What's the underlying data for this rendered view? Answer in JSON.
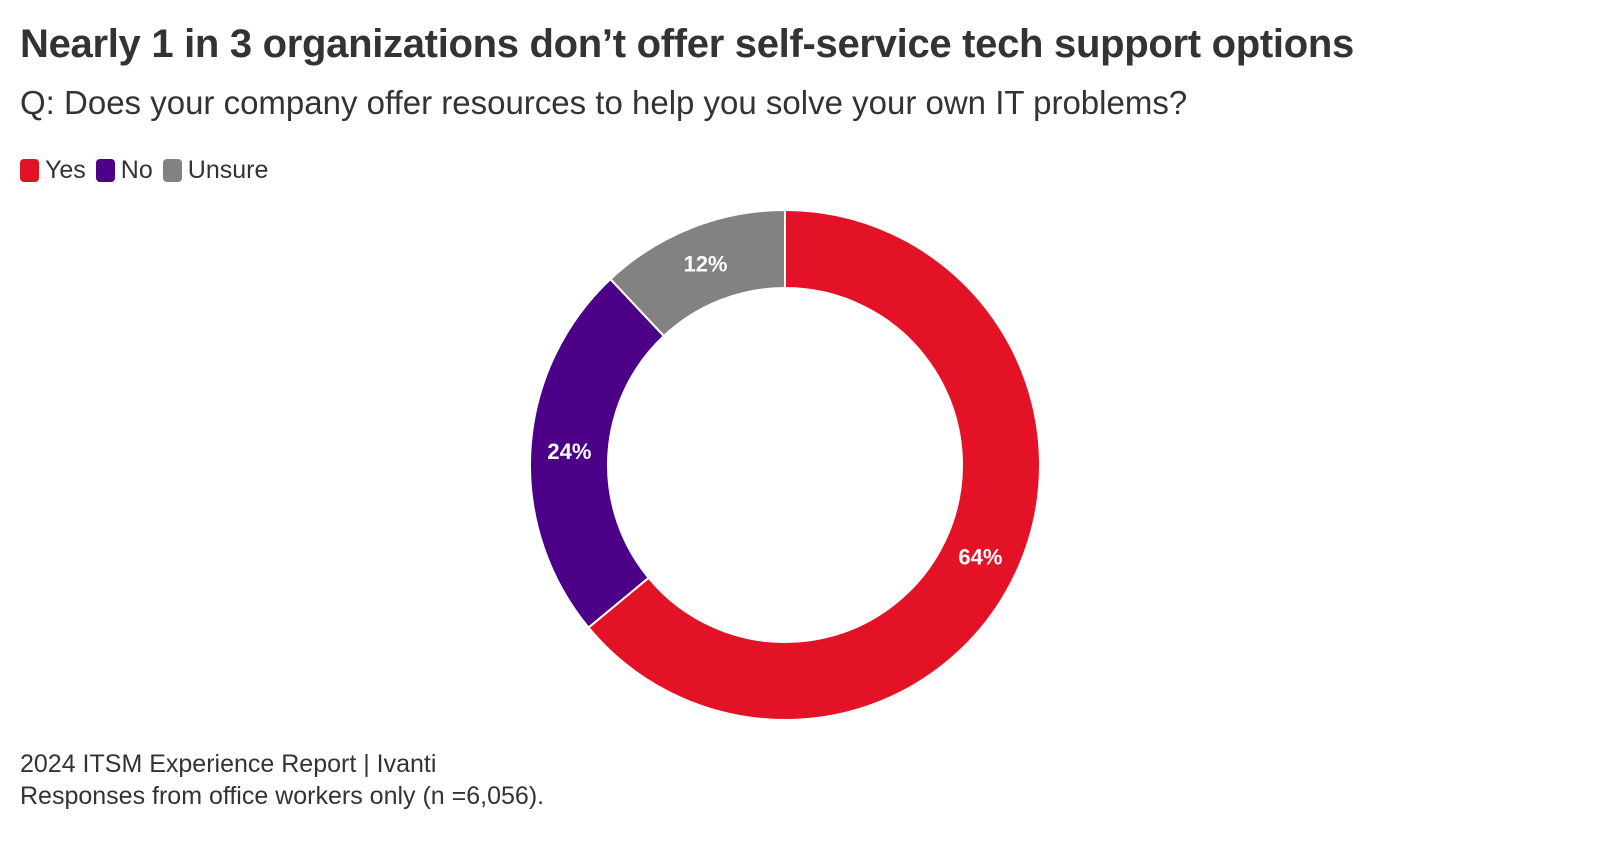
{
  "title": "Nearly 1 in 3 organizations don’t offer self-service tech support options",
  "subtitle": "Q: Does your company offer resources to help you solve your own IT problems?",
  "legend": [
    {
      "label": "Yes",
      "color": "#E31226"
    },
    {
      "label": "No",
      "color": "#4C0087"
    },
    {
      "label": "Unsure",
      "color": "#828282"
    }
  ],
  "chart_data": {
    "type": "pie",
    "variant": "donut",
    "categories": [
      "Yes",
      "No",
      "Unsure"
    ],
    "values": [
      64,
      24,
      12
    ],
    "labels": [
      "64%",
      "24%",
      "12%"
    ],
    "colors": [
      "#E31226",
      "#4C0087",
      "#828282"
    ],
    "legend_position": "top-left",
    "start_angle": "12 o'clock, clockwise"
  },
  "footer": {
    "source": "2024 ITSM Experience Report | Ivanti",
    "note": "Responses from office workers only (n =6,056)."
  }
}
